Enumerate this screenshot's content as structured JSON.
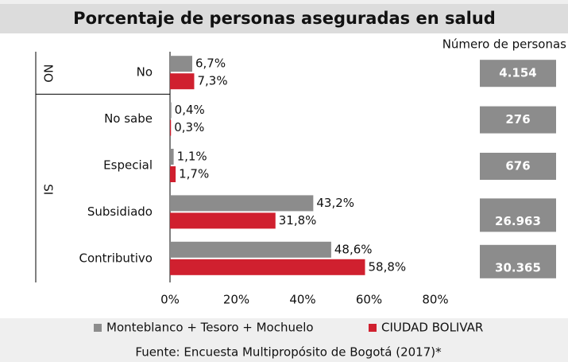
{
  "chart_data": {
    "type": "bar",
    "orientation": "horizontal",
    "title": "Porcentaje de personas aseguradas en salud",
    "categories": [
      "No",
      "No sabe",
      "Especial",
      "Subsidiado",
      "Contributivo"
    ],
    "groups": [
      {
        "label": "NO",
        "from": 0,
        "to": 0
      },
      {
        "label": "SI",
        "from": 1,
        "to": 4
      }
    ],
    "series": [
      {
        "name": "Monteblanco + Tesoro + Mochuelo",
        "color": "#8c8c8c",
        "values": [
          6.7,
          0.4,
          1.1,
          43.2,
          48.6
        ],
        "value_labels": [
          "6,7%",
          "0,4%",
          "1,1%",
          "43,2%",
          "48,6%"
        ]
      },
      {
        "name": "CIUDAD BOLIVAR",
        "color": "#d0202f",
        "values": [
          7.3,
          0.3,
          1.7,
          31.8,
          58.8
        ],
        "value_labels": [
          "7,3%",
          "0,3%",
          "1,7%",
          "31,8%",
          "58,8%"
        ]
      }
    ],
    "xlim": [
      0,
      80
    ],
    "xticks": [
      {
        "value": 0,
        "label": "0%"
      },
      {
        "value": 20,
        "label": "20%"
      },
      {
        "value": 40,
        "label": "40%"
      },
      {
        "value": 60,
        "label": "60%"
      },
      {
        "value": 80,
        "label": "80%"
      }
    ],
    "personas": {
      "title": "Número de personas",
      "values": [
        4154,
        276,
        676,
        26963,
        30365
      ],
      "value_labels": [
        "4.154",
        "276",
        "676",
        "26.963",
        "30.365"
      ]
    },
    "legend": "bottom",
    "source": "Fuente: Encuesta Multipropósito de Bogotá (2017)*"
  }
}
